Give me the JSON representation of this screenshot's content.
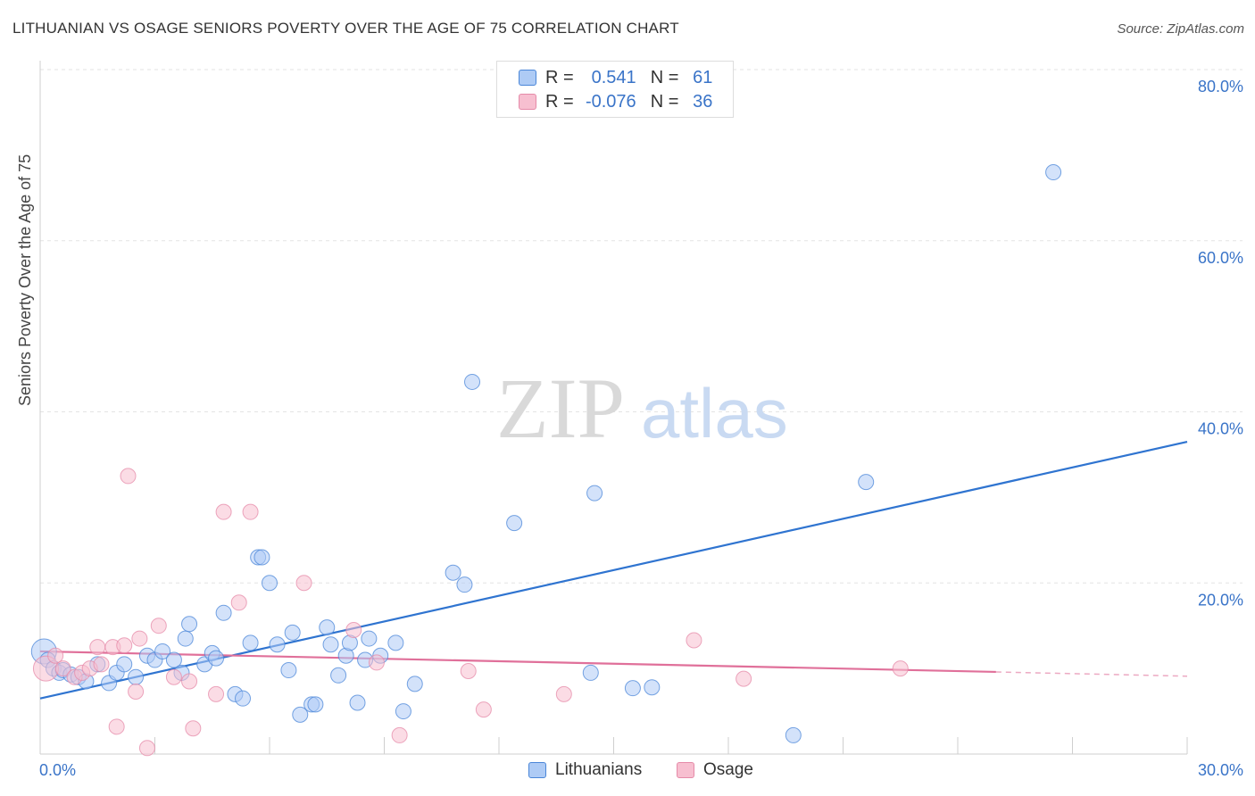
{
  "header": {
    "title": "LITHUANIAN VS OSAGE SENIORS POVERTY OVER THE AGE OF 75 CORRELATION CHART",
    "source": "Source: ZipAtlas.com"
  },
  "legend": {
    "rows": [
      {
        "r_label": "R =",
        "r_value": "0.541",
        "n_label": "N =",
        "n_value": "61",
        "color": "#aecbf5"
      },
      {
        "r_label": "R =",
        "r_value": "-0.076",
        "n_label": "N =",
        "n_value": "36",
        "color": "#f7bfd0"
      }
    ],
    "series_names": [
      "Lithuanians",
      "Osage"
    ]
  },
  "watermark": {
    "zip": "ZIP",
    "atlas": "atlas"
  },
  "colors": {
    "blue": "#4a86d8",
    "blue_fill": "#aecbf5",
    "blue_line": "#2f74d0",
    "pink": "#e58aa8",
    "pink_fill": "#f7bfd0",
    "pink_line": "#e0709a",
    "tick_label": "#3a74c8"
  },
  "chart_data": {
    "type": "scatter",
    "title": "LITHUANIAN VS OSAGE SENIORS POVERTY OVER THE AGE OF 75 CORRELATION CHART",
    "ylabel": "Seniors Poverty Over the Age of 75",
    "xlabel": "",
    "xlim": [
      0,
      30
    ],
    "ylim": [
      0,
      80
    ],
    "x_tick_labels": [
      "0.0%",
      "30.0%"
    ],
    "y_ticks": [
      20,
      40,
      60,
      80
    ],
    "y_tick_labels": [
      "20.0%",
      "40.0%",
      "60.0%",
      "80.0%"
    ],
    "grid": true,
    "legend_position": "top-center",
    "series": [
      {
        "name": "Lithuanians",
        "color": "#4a86d8",
        "trend": {
          "x": [
            0,
            30
          ],
          "y": [
            6.5,
            36.5
          ]
        },
        "points": [
          [
            0.1,
            12.0
          ],
          [
            0.2,
            11.0
          ],
          [
            0.35,
            10.0
          ],
          [
            0.5,
            9.5
          ],
          [
            0.6,
            9.8
          ],
          [
            0.8,
            9.3
          ],
          [
            1.0,
            9.0
          ],
          [
            1.2,
            8.5
          ],
          [
            1.5,
            10.5
          ],
          [
            1.8,
            8.3
          ],
          [
            2.0,
            9.5
          ],
          [
            2.2,
            10.5
          ],
          [
            2.5,
            9.0
          ],
          [
            2.8,
            11.5
          ],
          [
            3.0,
            11.0
          ],
          [
            3.2,
            12.0
          ],
          [
            3.5,
            11.0
          ],
          [
            3.7,
            9.5
          ],
          [
            3.8,
            13.5
          ],
          [
            3.9,
            15.2
          ],
          [
            4.3,
            10.5
          ],
          [
            4.5,
            11.8
          ],
          [
            4.6,
            11.2
          ],
          [
            4.8,
            16.5
          ],
          [
            5.1,
            7.0
          ],
          [
            5.3,
            6.5
          ],
          [
            5.5,
            13.0
          ],
          [
            5.7,
            23.0
          ],
          [
            5.8,
            23.0
          ],
          [
            6.0,
            20.0
          ],
          [
            6.2,
            12.8
          ],
          [
            6.5,
            9.8
          ],
          [
            6.6,
            14.2
          ],
          [
            6.8,
            4.6
          ],
          [
            7.1,
            5.8
          ],
          [
            7.2,
            5.8
          ],
          [
            7.5,
            14.8
          ],
          [
            7.6,
            12.8
          ],
          [
            7.8,
            9.2
          ],
          [
            8.0,
            11.5
          ],
          [
            8.1,
            13.0
          ],
          [
            8.3,
            6.0
          ],
          [
            8.5,
            11.0
          ],
          [
            8.6,
            13.5
          ],
          [
            8.9,
            11.5
          ],
          [
            9.3,
            13.0
          ],
          [
            9.5,
            5.0
          ],
          [
            9.8,
            8.2
          ],
          [
            10.8,
            21.2
          ],
          [
            11.1,
            19.8
          ],
          [
            11.3,
            43.5
          ],
          [
            12.4,
            27.0
          ],
          [
            14.4,
            9.5
          ],
          [
            14.5,
            30.5
          ],
          [
            15.5,
            7.7
          ],
          [
            16.0,
            7.8
          ],
          [
            19.7,
            2.2
          ],
          [
            21.6,
            31.8
          ],
          [
            26.5,
            68.0
          ]
        ]
      },
      {
        "name": "Osage",
        "color": "#e58aa8",
        "trend": {
          "x": [
            0,
            25.0
          ],
          "y": [
            12.0,
            9.6
          ]
        },
        "trend_dashed": {
          "x": [
            25.0,
            30
          ],
          "y": [
            9.6,
            9.1
          ]
        },
        "points": [
          [
            0.15,
            10.0
          ],
          [
            0.4,
            11.5
          ],
          [
            0.6,
            10.0
          ],
          [
            0.9,
            9.0
          ],
          [
            1.1,
            9.5
          ],
          [
            1.3,
            10.0
          ],
          [
            1.5,
            12.5
          ],
          [
            1.6,
            10.5
          ],
          [
            1.9,
            12.5
          ],
          [
            2.0,
            3.2
          ],
          [
            2.2,
            12.7
          ],
          [
            2.3,
            32.5
          ],
          [
            2.5,
            7.3
          ],
          [
            2.6,
            13.5
          ],
          [
            2.8,
            0.7
          ],
          [
            3.1,
            15.0
          ],
          [
            3.5,
            9.0
          ],
          [
            3.9,
            8.5
          ],
          [
            4.0,
            3.0
          ],
          [
            4.6,
            7.0
          ],
          [
            4.8,
            28.3
          ],
          [
            5.2,
            17.7
          ],
          [
            5.5,
            28.3
          ],
          [
            6.9,
            20.0
          ],
          [
            8.2,
            14.5
          ],
          [
            8.8,
            10.7
          ],
          [
            9.4,
            2.2
          ],
          [
            11.2,
            9.7
          ],
          [
            11.6,
            5.2
          ],
          [
            13.7,
            7.0
          ],
          [
            17.1,
            13.3
          ],
          [
            18.4,
            8.8
          ],
          [
            22.5,
            10.0
          ]
        ]
      }
    ]
  }
}
